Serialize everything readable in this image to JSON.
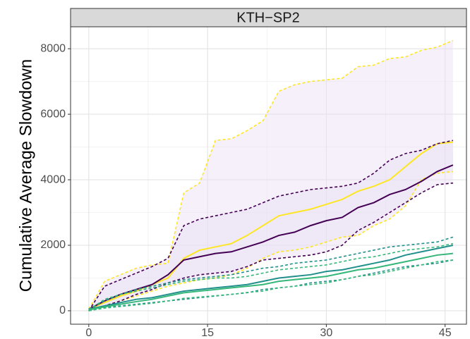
{
  "chart_data": {
    "type": "line",
    "facet_title": "KTH−SP2",
    "ylabel": "Cumulative Average Slowdown",
    "x": [
      0,
      2,
      4,
      6,
      8,
      10,
      12,
      14,
      16,
      18,
      20,
      22,
      24,
      26,
      28,
      30,
      32,
      34,
      36,
      38,
      40,
      42,
      44,
      46
    ],
    "xlim": [
      -2.3,
      47.7
    ],
    "ylim": [
      -410,
      8670
    ],
    "xticks": [
      0,
      15,
      30,
      45
    ],
    "yticks": [
      0,
      2000,
      4000,
      6000,
      8000
    ],
    "x_minor_grid": [
      7.5,
      22.5,
      37.5
    ],
    "y_minor_grid": [
      1000,
      3000,
      5000,
      7000
    ],
    "grid": true,
    "ribbons": [
      {
        "between": [
          1,
          2
        ],
        "color": "#e9ddf5"
      },
      {
        "between": [
          4,
          5
        ],
        "color": "#e9ddf5"
      }
    ],
    "series": [
      {
        "color": "#fde725",
        "linestyle": "solid",
        "values": [
          50,
          250,
          450,
          600,
          800,
          1000,
          1600,
          1850,
          1950,
          2050,
          2300,
          2600,
          2900,
          3000,
          3100,
          3250,
          3400,
          3650,
          3800,
          4000,
          4400,
          4800,
          5100,
          5150
        ]
      },
      {
        "color": "#fde725",
        "linestyle": "dashed",
        "values": [
          50,
          900,
          1100,
          1300,
          1400,
          1450,
          3600,
          3900,
          5200,
          5250,
          5500,
          5800,
          6700,
          6900,
          7000,
          7050,
          7100,
          7450,
          7500,
          7700,
          7750,
          7950,
          8050,
          8250
        ]
      },
      {
        "color": "#fde725",
        "linestyle": "dashed",
        "values": [
          0,
          150,
          300,
          450,
          600,
          750,
          850,
          950,
          1000,
          1100,
          1300,
          1600,
          1800,
          1850,
          1950,
          2100,
          2250,
          2300,
          2600,
          2800,
          3200,
          4000,
          4200,
          4250
        ]
      },
      {
        "color": "#440154",
        "linestyle": "solid",
        "values": [
          50,
          300,
          500,
          650,
          800,
          1100,
          1550,
          1650,
          1750,
          1800,
          1950,
          2100,
          2300,
          2400,
          2600,
          2750,
          2850,
          3150,
          3300,
          3550,
          3700,
          3950,
          4250,
          4450
        ]
      },
      {
        "color": "#440154",
        "linestyle": "dashed",
        "values": [
          0,
          750,
          950,
          1150,
          1350,
          1600,
          2600,
          2800,
          2900,
          3000,
          3100,
          3300,
          3500,
          3600,
          3700,
          3750,
          3800,
          3900,
          4200,
          4600,
          4800,
          4900,
          5100,
          5200
        ]
      },
      {
        "color": "#440154",
        "linestyle": "dashed",
        "values": [
          0,
          150,
          300,
          500,
          650,
          850,
          1000,
          1100,
          1150,
          1200,
          1350,
          1550,
          1600,
          1650,
          1700,
          1800,
          2000,
          2450,
          2700,
          3000,
          3300,
          3600,
          3850,
          3900
        ]
      },
      {
        "color": "#21908c",
        "linestyle": "solid",
        "values": [
          50,
          150,
          250,
          350,
          400,
          500,
          600,
          650,
          700,
          750,
          800,
          900,
          1000,
          1050,
          1100,
          1200,
          1250,
          1350,
          1450,
          1550,
          1700,
          1800,
          1900,
          2000
        ]
      },
      {
        "color": "#21908c",
        "linestyle": "dashed",
        "values": [
          50,
          300,
          500,
          650,
          750,
          850,
          950,
          1000,
          1050,
          1100,
          1200,
          1300,
          1350,
          1450,
          1500,
          1550,
          1650,
          1750,
          1850,
          1950,
          2000,
          2050,
          2100,
          2250
        ]
      },
      {
        "color": "#21908c",
        "linestyle": "dashed",
        "values": [
          0,
          100,
          150,
          200,
          250,
          300,
          350,
          400,
          450,
          500,
          550,
          650,
          700,
          750,
          850,
          900,
          950,
          1050,
          1150,
          1250,
          1350,
          1400,
          1450,
          1550
        ]
      },
      {
        "color": "#35b779",
        "linestyle": "solid",
        "values": [
          30,
          120,
          200,
          280,
          350,
          450,
          550,
          600,
          650,
          700,
          750,
          800,
          900,
          950,
          1000,
          1050,
          1150,
          1250,
          1300,
          1400,
          1500,
          1600,
          1700,
          1750
        ]
      },
      {
        "color": "#35b779",
        "linestyle": "dashed",
        "values": [
          30,
          350,
          500,
          600,
          700,
          800,
          900,
          950,
          1000,
          1000,
          1050,
          1150,
          1250,
          1300,
          1350,
          1400,
          1500,
          1600,
          1650,
          1750,
          1850,
          1900,
          1950,
          2050
        ]
      },
      {
        "color": "#35b779",
        "linestyle": "dashed",
        "values": [
          0,
          80,
          130,
          180,
          230,
          300,
          380,
          420,
          460,
          500,
          560,
          600,
          700,
          750,
          800,
          850,
          950,
          1050,
          1100,
          1200,
          1300,
          1400,
          1500,
          1550
        ]
      }
    ]
  }
}
